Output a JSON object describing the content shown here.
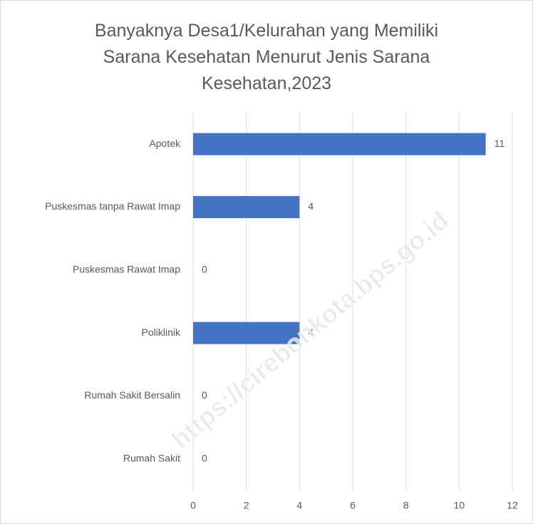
{
  "chart_data": {
    "type": "bar",
    "orientation": "horizontal",
    "title": "Banyaknya Desa1/Kelurahan yang Memiliki\nSarana Kesehatan Menurut Jenis Sarana\nKesehatan,2023",
    "categories": [
      "Apotek",
      "Puskesmas tanpa Rawat Imap",
      "Puskesmas Rawat Imap",
      "Poliklinik",
      "Rumah Sakit Bersalin",
      "Rumah Sakit"
    ],
    "values": [
      11,
      4,
      0,
      4,
      0,
      0
    ],
    "color": "#4472c4",
    "xlim": [
      0,
      12
    ],
    "xticks": [
      0,
      2,
      4,
      6,
      8,
      10,
      12
    ],
    "grid": true,
    "watermark": "https://cirebonkota.bps.go.id"
  }
}
